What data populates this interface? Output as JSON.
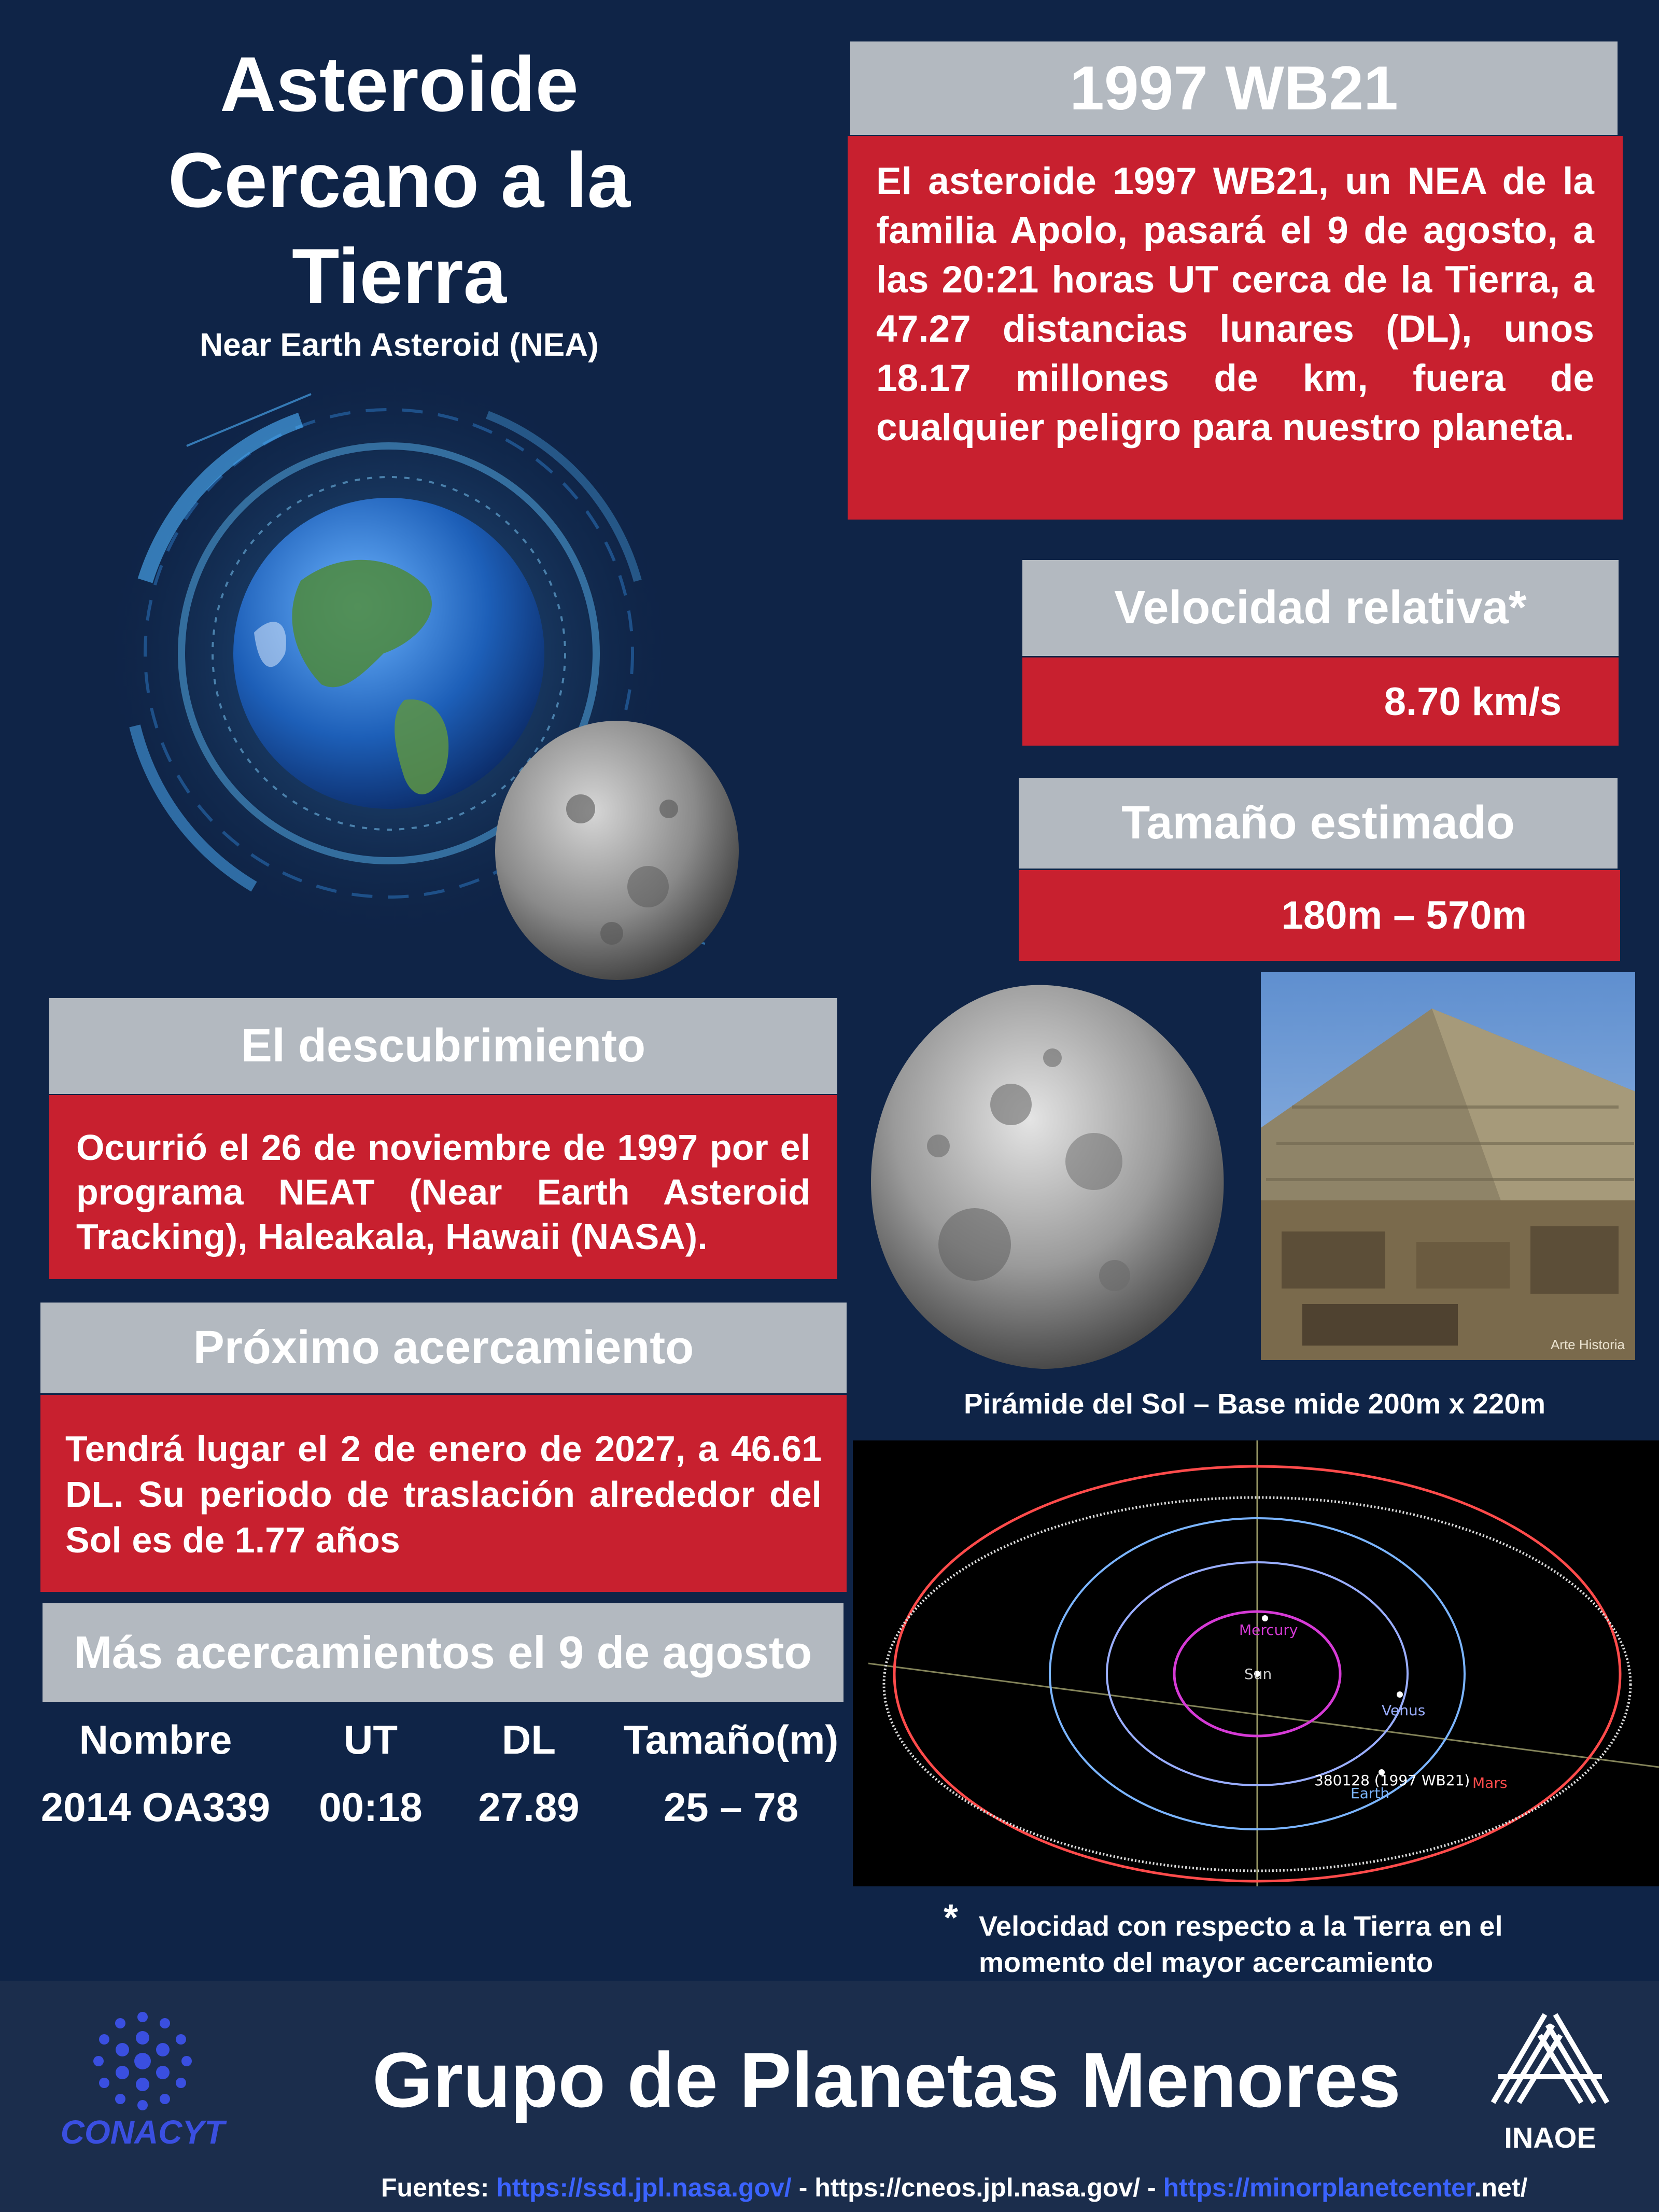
{
  "hero": {
    "title": "Asteroide Cercano a la Tierra",
    "subtitle": "Near Earth Asteroid (NEA)"
  },
  "asteroid": {
    "name": "1997 WB21",
    "description": "El asteroide 1997 WB21, un NEA de la familia Apolo, pasará el 9 de agosto, a las 20:21 horas UT cerca de la Tierra, a 47.27 distancias lunares (DL), unos 18.17 millones de km, fuera de cualquier peligro para nuestro planeta."
  },
  "velocity": {
    "label": "Velocidad relativa*",
    "value": "8.70 km/s"
  },
  "size": {
    "label": "Tamaño estimado",
    "value": "180m – 570m"
  },
  "discovery": {
    "label": "El descubrimiento",
    "text": "Ocurrió el 26 de noviembre de 1997 por el programa NEAT (Near Earth Asteroid Tracking), Haleakala, Hawaii (NASA)."
  },
  "next_approach": {
    "label": "Próximo acercamiento",
    "text": "Tendrá lugar el 2 de enero de 2027, a 46.61 DL. Su periodo de traslación alrededor del Sol es de 1.77 años"
  },
  "more_approaches": {
    "label": "Más acercamientos el 9 de agosto",
    "columns": [
      "Nombre",
      "UT",
      "DL",
      "Tamaño(m)"
    ],
    "rows": [
      [
        "2014 OA339",
        "00:18",
        "27.89",
        "25 – 78"
      ]
    ]
  },
  "pyramid_caption": "Pirámide del Sol – Base mide 200m x 220m",
  "pyramid_watermark": "Arte Historia",
  "orbit_labels": {
    "mercury": "Mercury",
    "sun": "Sun",
    "venus": "Venus",
    "earth": "Earth",
    "mars": "Mars",
    "asteroid": "380128 (1997 WB21)"
  },
  "footnote": {
    "mark": "*",
    "text": "Velocidad con respecto a la Tierra en el momento del mayor acercamiento"
  },
  "footer": {
    "conacyt": "CONACYT",
    "group": "Grupo de Planetas Menores",
    "inaoe": "INAOE",
    "sources_label": "Fuentes:",
    "source1": "https://ssd.jpl.nasa.gov/",
    "sep1": " - https://cneos.jpl.nasa.gov/ - ",
    "source3": "https://minorplanetcenter",
    "source3_suffix": ".net/"
  },
  "colors": {
    "background": "#0f2447",
    "header_grey": "#b3b9c0",
    "accent_red": "#c8202f",
    "footer_bg": "#1b2d4c",
    "link_blue": "#3b63ff"
  }
}
